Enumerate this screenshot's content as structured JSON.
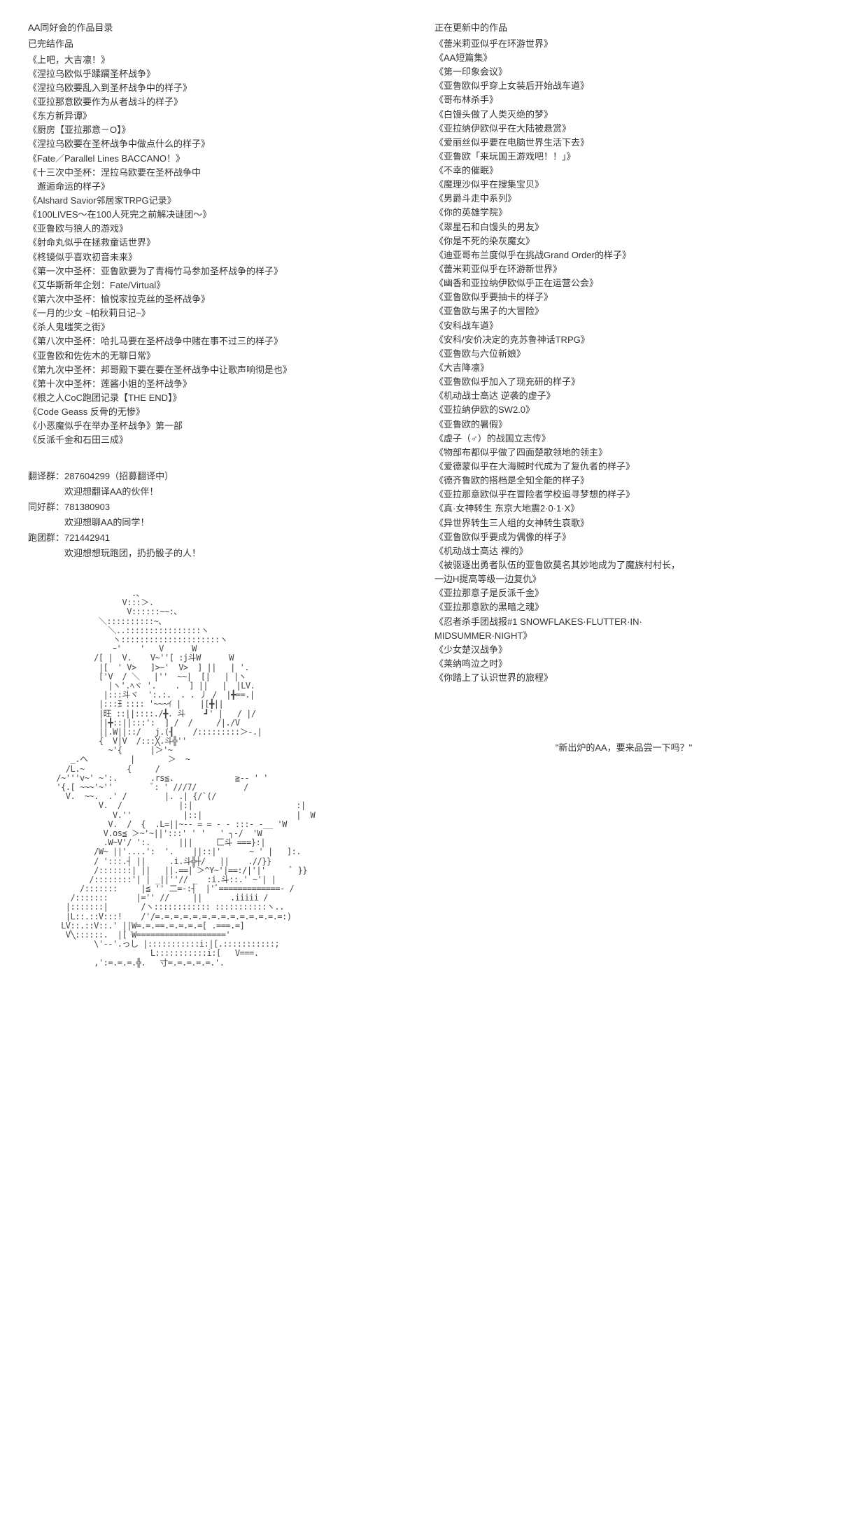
{
  "left": {
    "catalog_title": "AA同好会的作品目录",
    "completed_title": "已完结作品",
    "completed_works": [
      "《上吧，大吉凛！》",
      "《涅拉乌欧似乎蹂躏圣杯战争》",
      "《涅拉乌欧要乱入到圣杯战争中的样子》",
      "《亚拉那意欧要作为从者战斗的样子》",
      "《东方新异谭》",
      "《厨房【亚拉那意－O】》",
      "《涅拉乌欧要在圣杯战争中做点什么的样子》",
      "《Fate／Parallel Lines BACCANO！》",
      "《十三次中圣杯：涅拉乌欧要在圣杯战争中\n　邂逅命运的样子》",
      "《Alshard Savior邻居家TRPG记录》",
      "《100LIVES～在100人死完之前解决谜团～》",
      "《亚鲁欧与狼人的游戏》",
      "《射命丸似乎在拯救童话世界》",
      "《柊镜似乎喜欢初音未来》",
      "《第一次中圣杯：亚鲁欧要为了青梅竹马参加圣杯战争的样子》",
      "《艾华斯新年企划：Fate/Virtual》",
      "《第六次中圣杯：愉悦家拉克丝的圣杯战争》",
      "《一月的少女 ~帕秋莉日记~》",
      "《杀人鬼嗤笑之街》",
      "《第八次中圣杯：哈扎马要在圣杯战争中赌在事不过三的样子》",
      "《亚鲁欧和佐佐木的无聊日常》",
      "《第九次中圣杯：邦哥殿下要在要在圣杯战争中让歌声响彻是也》",
      "《第十次中圣杯：莲酱小姐的圣杯战争》",
      "《根之人CoC跑团记录【THE END】》",
      "《Code Geass 反骨的无惨》",
      "《小恶魔似乎在举办圣杯战争》第一部",
      "《反派千金和石田三成》"
    ],
    "groups": [
      {
        "label": "翻译群：",
        "number": "287604299（招募翻译中）",
        "welcome": "　　　　欢迎想翻译AA的伙伴！"
      },
      {
        "label": "同好群：",
        "number": "781380903",
        "welcome": "　　　　欢迎想聊AA的同学！"
      },
      {
        "label": "跑团群：",
        "number": "721442941",
        "welcome": "　　　　欢迎想想玩跑团，扔扔骰子的人！"
      }
    ]
  },
  "right": {
    "updating_title": "正在更新中的作品",
    "updating_works": [
      "《蕾米莉亚似乎在环游世界》",
      "《AA短篇集》",
      "《第一印象会议》",
      "《亚鲁欧似乎穿上女装后开始战车道》",
      "《哥布林杀手》",
      "《白馒头做了人类灭绝的梦》",
      "《亚拉纳伊欧似乎在大陆被悬赏》",
      "《爱丽丝似乎要在电脑世界生活下去》",
      "《亚鲁欧「来玩国王游戏吧！！」》",
      "《不幸的催眠》",
      "《魔理沙似乎在搜集宝贝》",
      "《男爵斗走中系列》",
      "《你的英雄学院》",
      "《翠星石和白馒头的男友》",
      "《你是不死的染灰魔女》",
      "《迪亚哥布兰度似乎在挑战Grand Order的样子》",
      "《蕾米莉亚似乎在环游新世界》",
      "《幽香和亚拉纳伊欧似乎正在运营公会》",
      "《亚鲁欧似乎要抽卡的样子》",
      "《亚鲁欧与黑子的大冒险》",
      "《安科战车道》",
      "《安科/安价决定的克苏鲁神话TRPG》",
      "《亚鲁欧与六位新娘》",
      "《大吉降凛》",
      "《亚鲁欧似乎加入了现充研的样子》",
      "《机动战士高达 逆袭的虚子》",
      "《亚拉纳伊欧的SW2.0》",
      "《亚鲁欧的暑假》",
      "《虚子（♂）的战国立志传》",
      "《物部布都似乎做了四面楚歌领地的领主》",
      "《爱德蒙似乎在大海贼时代成为了复仇者的样子》",
      "《德齐鲁欧的搭档是全知全能的样子》",
      "《亚拉那意欧似乎在冒险者学校追寻梦想的样子》",
      "《真·女神转生 东京大地震2·0·1·X》",
      "《异世界转生三人组的女神转生哀歌》",
      "《亚鲁欧似乎要成为偶像的样子》",
      "《机动战士高达 裸的》",
      "《被驱逐出勇者队伍的亚鲁欧莫名其妙地成为了魔族村村长，\n一边H提高等级一边复仇》",
      "《亚拉那意子是反派千金》",
      "《亚拉那意欧的黑暗之魂》",
      "《忍者杀手团战报#1 SNOWFLAKES·FLUTTER·IN·\nMIDSUMMER·NIGHT》",
      "《少女楚汉战争》",
      "《莱纳鸣泣之时》",
      "《你踏上了认识世界的旅程》"
    ],
    "quote": "\"新出炉的AA，要来品尝一下吗？\""
  },
  "ascii": "                      .､\n                    V:::＞.\n                     V::::::~~:､\n               ＼::::::::::~､\n                 ＼..::::::::::::::::ヽ\n                  ヽ:::::::::::::::::::::ヽ\n                  ｰ'    '   V      W\n              /[ |  V.    V~''[ :j斗W      W\n               |[  ' V>   ]>~'  V>  ] ||   | '.\n               ['V  / ＼   |''  ~~|  [|   | |ヽ\n                 |ヽ'.ﾍヾ '.    .  ] ||   |  |LV.\n                |:::斗ヾ  ':.:.  . . 丿 /  |╋==.|\n               |:::⺩:::: '~~~ｲ |    |[╋||\n               |旺 ::||::::./╋. 斗    ┛' |   / |/\n               ||╋::||:::':  ] /  /     /|./V\n               ||.W||::/   j.(┨    /:::::::::＞-.|\n               {  V|V  /:::╳.斗╬''\n                 ~'{      |＞'~\n         _.ヘ         |       ＞  ~\n        /L.~         {     /\n      /~'''v~' ~':.       .rs≦.             ≧-- ' '\n      '{.[ ~~~'~''        ﾞ: ' ///7/          /\n        V.  ~~.  .' /        |. .| {/`(/\n               V.  /            |:|                      :|\n                  V.''           |::|                    |  W\n                 V.  /  {  .L=||~-- = = - - :::- -__ 'W\n                V.os≦ ＞~'~||':::' ' '   ' ┐-/  'W\n                .W~V'/ ':.      |||     匚斗 ===}:|\n              /W~ ||'....':  '.    ||::|'      ~ ' |   ]:.\n              / ':::.┤ ||     .i.斗╬┼/   ||    .//}}\n              /:::::::| ||   ||.==|ﾞ＞^Y~'|==:/|'|'     ﾞ }}\n             /::::::::'| | _||''// _  :i.斗::.' ~'| |\n           /:::::::     |≦ '' 二=-:┤  |'ﾞ=============- /\n         /:::::::      |='' //     ||      .iiiii /\n        |:::::::|       /ヽ:::::::::::: :::::::::::ヽ..\n        |L::.::V:::!    /'/=.=.=.=.=.=.=.=.=.=.=.=.=.=:)\n       LV::.::V::.' ||W=.=.==.=.=.=.=[ .===.=]\n        V╲::::::.  |[ W==================='\n              \\'--'.っし |:::::::::::i:|[.:::::::::::;\n                          L:::::::::::i:[   V===.\n              ,':=.=.=.╬.   寸=.=.=.=.=.'."
}
